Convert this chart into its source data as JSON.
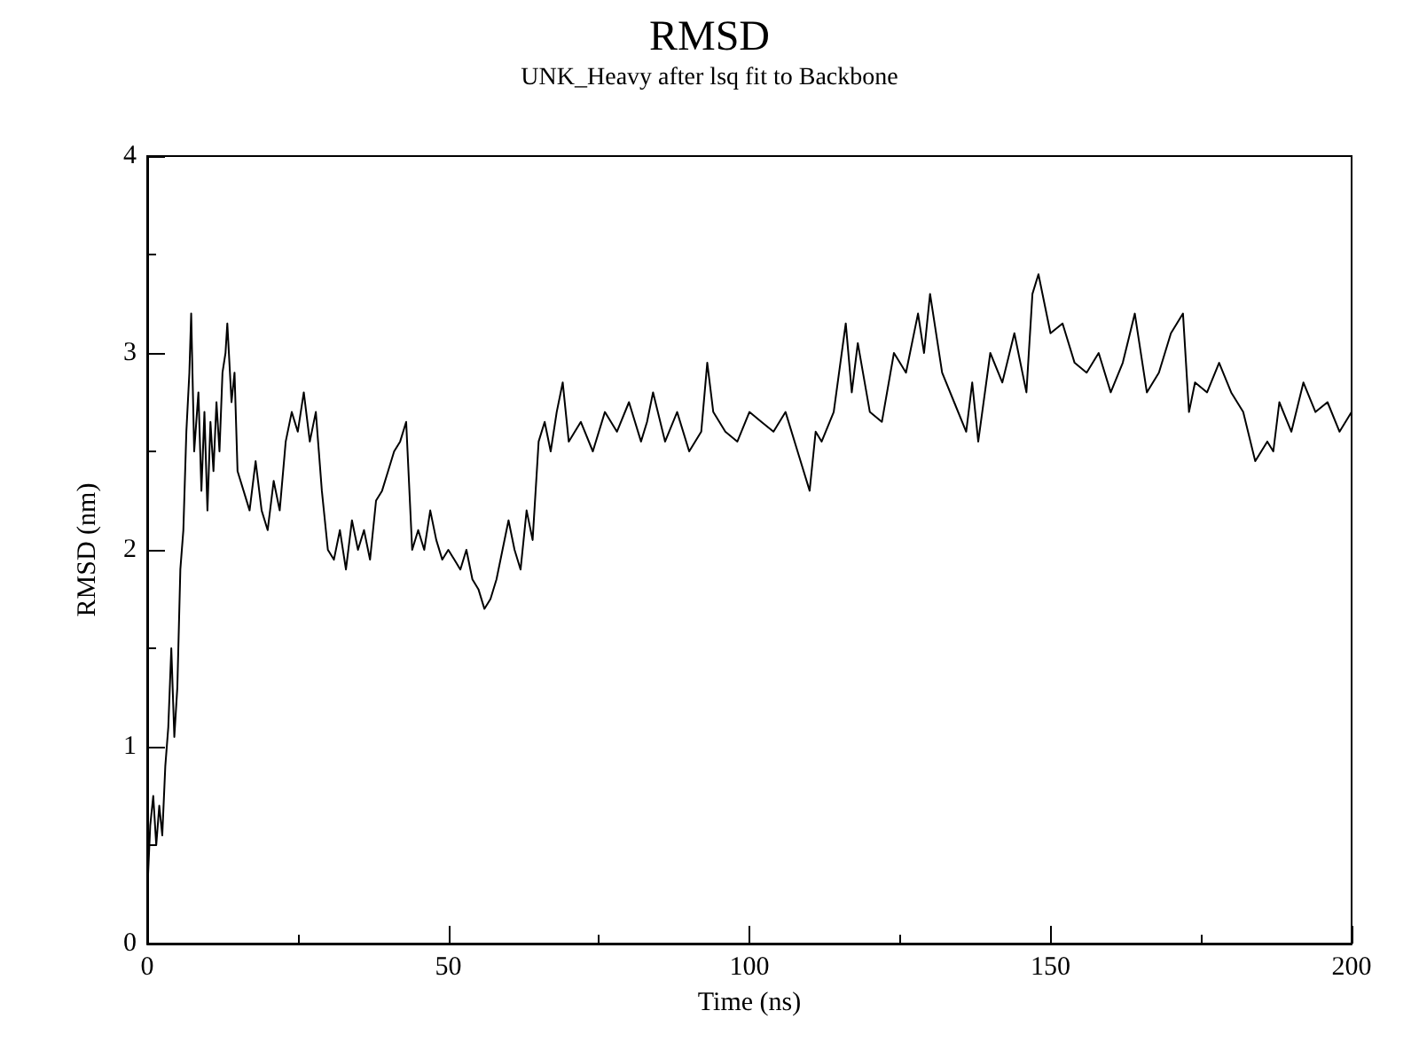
{
  "chart_data": {
    "type": "line",
    "title": "RMSD",
    "subtitle": "UNK_Heavy after lsq fit to Backbone",
    "xlabel": "Time (ns)",
    "ylabel": "RMSD (nm)",
    "xlim": [
      0,
      200
    ],
    "xticks": [
      0,
      50,
      100,
      150,
      200
    ],
    "ylim": [
      0,
      4
    ],
    "yticks": [
      0,
      1,
      2,
      3,
      4
    ],
    "grid": false,
    "marker": "none",
    "line_style": "solid",
    "series": [
      {
        "color": "#000000",
        "x": [
          0,
          0.5,
          1,
          1.5,
          2,
          2.5,
          3,
          3.5,
          4,
          4.5,
          5,
          5.5,
          6,
          6.5,
          7,
          7.3,
          7.8,
          8.5,
          9,
          9.5,
          10,
          10.5,
          11,
          11.5,
          12,
          12.5,
          13,
          13.3,
          14,
          14.5,
          15,
          16,
          17,
          18,
          19,
          20,
          21,
          22,
          23,
          24,
          25,
          26,
          27,
          28,
          29,
          30,
          31,
          32,
          33,
          34,
          35,
          36,
          37,
          38,
          39,
          40,
          41,
          42,
          43,
          44,
          45,
          46,
          47,
          48,
          49,
          50,
          51,
          52,
          53,
          54,
          55,
          56,
          57,
          58,
          59,
          60,
          61,
          62,
          63,
          64,
          65,
          66,
          67,
          68,
          69,
          70,
          72,
          74,
          76,
          78,
          80,
          82,
          83,
          84,
          86,
          88,
          90,
          92,
          93,
          94,
          96,
          98,
          100,
          102,
          104,
          106,
          108,
          110,
          111,
          112,
          114,
          116,
          117,
          118,
          120,
          122,
          124,
          126,
          128,
          129,
          130,
          132,
          134,
          136,
          137,
          138,
          140,
          142,
          144,
          146,
          147,
          148,
          150,
          152,
          154,
          156,
          158,
          160,
          162,
          164,
          166,
          168,
          170,
          172,
          173,
          174,
          176,
          178,
          180,
          182,
          184,
          186,
          187,
          188,
          190,
          192,
          194,
          196,
          198,
          200
        ],
        "values": [
          0.25,
          0.6,
          0.75,
          0.5,
          0.7,
          0.55,
          0.9,
          1.1,
          1.5,
          1.05,
          1.3,
          1.9,
          2.1,
          2.6,
          2.9,
          3.2,
          2.5,
          2.8,
          2.3,
          2.7,
          2.2,
          2.65,
          2.4,
          2.75,
          2.5,
          2.9,
          3.0,
          3.15,
          2.75,
          2.9,
          2.4,
          2.3,
          2.2,
          2.45,
          2.2,
          2.1,
          2.35,
          2.2,
          2.55,
          2.7,
          2.6,
          2.8,
          2.55,
          2.7,
          2.3,
          2.0,
          1.95,
          2.1,
          1.9,
          2.15,
          2.0,
          2.1,
          1.95,
          2.25,
          2.3,
          2.4,
          2.5,
          2.55,
          2.65,
          2.0,
          2.1,
          2.0,
          2.2,
          2.05,
          1.95,
          2.0,
          1.95,
          1.9,
          2.0,
          1.85,
          1.8,
          1.7,
          1.75,
          1.85,
          2.0,
          2.15,
          2.0,
          1.9,
          2.2,
          2.05,
          2.55,
          2.65,
          2.5,
          2.7,
          2.85,
          2.55,
          2.65,
          2.5,
          2.7,
          2.6,
          2.75,
          2.55,
          2.65,
          2.8,
          2.55,
          2.7,
          2.5,
          2.6,
          2.95,
          2.7,
          2.6,
          2.55,
          2.7,
          2.65,
          2.6,
          2.7,
          2.5,
          2.3,
          2.6,
          2.55,
          2.7,
          3.15,
          2.8,
          3.05,
          2.7,
          2.65,
          3.0,
          2.9,
          3.2,
          3.0,
          3.3,
          2.9,
          2.75,
          2.6,
          2.85,
          2.55,
          3.0,
          2.85,
          3.1,
          2.8,
          3.3,
          3.4,
          3.1,
          3.15,
          2.95,
          2.9,
          3.0,
          2.8,
          2.95,
          3.2,
          2.8,
          2.9,
          3.1,
          3.2,
          2.7,
          2.85,
          2.8,
          2.95,
          2.8,
          2.7,
          2.45,
          2.55,
          2.5,
          2.75,
          2.6,
          2.85,
          2.7,
          2.75,
          2.6,
          2.7
        ]
      }
    ]
  }
}
